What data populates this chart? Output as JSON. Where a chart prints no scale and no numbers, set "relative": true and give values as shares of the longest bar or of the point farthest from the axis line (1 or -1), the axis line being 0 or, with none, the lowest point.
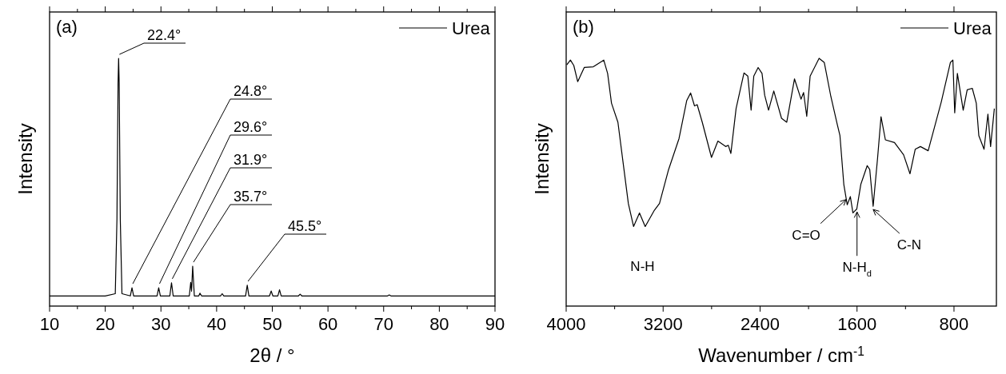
{
  "chart_data": [
    {
      "type": "line",
      "title": "(a)",
      "xlabel": "2θ / °",
      "ylabel": "Intensity",
      "relative": true,
      "tick_labels": "x",
      "legend": "top right",
      "xlim": [
        10,
        90
      ],
      "xticks": [
        10,
        {
          "value": 15,
          "label": null
        },
        20,
        {
          "value": 25,
          "label": null
        },
        30,
        {
          "value": 35,
          "label": null
        },
        40,
        {
          "value": 45,
          "label": null
        },
        50,
        {
          "value": 55,
          "label": null
        },
        60,
        {
          "value": 65,
          "label": null
        },
        70,
        {
          "value": 75,
          "label": null
        },
        80,
        {
          "value": 85,
          "label": null
        },
        90
      ],
      "annotations": [
        {
          "text": "22.4°",
          "x": 22.4,
          "y": 1.0
        },
        {
          "text": "24.8°",
          "x": 24.8,
          "y": 0.074
        },
        {
          "text": "29.6°",
          "x": 29.6,
          "y": 0.074
        },
        {
          "text": "31.9°",
          "x": 31.9,
          "y": 0.094
        },
        {
          "text": "35.7°",
          "x": 35.7,
          "y": 0.161
        },
        {
          "text": "45.5°",
          "x": 45.5,
          "y": 0.084
        }
      ],
      "series": [
        {
          "name": "Urea",
          "color": "#000000",
          "x": [
            10,
            20,
            21.8,
            22.1,
            22.3,
            22.4,
            22.5,
            22.7,
            23.0,
            24.5,
            24.8,
            25.1,
            29.3,
            29.6,
            29.9,
            31.6,
            31.9,
            32.2,
            35.1,
            35.35,
            35.5,
            35.7,
            36.0,
            36.8,
            37.0,
            37.3,
            40.7,
            41.0,
            41.3,
            45.2,
            45.5,
            45.8,
            49.5,
            49.8,
            50.1,
            51.0,
            51.3,
            51.6,
            54.7,
            55.0,
            55.3,
            70.7,
            71.0,
            71.3,
            90
          ],
          "values": [
            0.041,
            0.041,
            0.05,
            0.35,
            0.9,
            1.0,
            0.9,
            0.35,
            0.05,
            0.041,
            0.074,
            0.041,
            0.041,
            0.074,
            0.041,
            0.041,
            0.094,
            0.041,
            0.041,
            0.096,
            0.06,
            0.161,
            0.041,
            0.041,
            0.052,
            0.041,
            0.041,
            0.05,
            0.041,
            0.041,
            0.084,
            0.041,
            0.041,
            0.061,
            0.041,
            0.041,
            0.066,
            0.041,
            0.041,
            0.048,
            0.041,
            0.041,
            0.045,
            0.041,
            0.041
          ]
        }
      ]
    },
    {
      "type": "line",
      "title": "(b)",
      "xlabel": "Wavenumber / cm$^{-1}$",
      "ylabel": "Intensity",
      "relative": true,
      "tick_labels": "x",
      "legend": "top right",
      "xlim": [
        4000,
        450
      ],
      "xticks": [
        4000,
        {
          "value": 3600,
          "label": null
        },
        3200,
        {
          "value": 2800,
          "label": null
        },
        2400,
        {
          "value": 2000,
          "label": null
        },
        1600,
        {
          "value": 1200,
          "label": null
        },
        800
      ],
      "annotations": [
        {
          "text": "N-H",
          "x": 3370,
          "y": 0.32
        },
        {
          "text": "C=O",
          "x": 1690,
          "y": 0.43
        },
        {
          "text": "N-H$_{d}$",
          "x": 1600,
          "y": 0.38
        },
        {
          "text": "C-N",
          "x": 1467,
          "y": 0.39
        }
      ],
      "series": [
        {
          "name": "Urea",
          "color": "#000000",
          "x": [
            3995,
            3965,
            3937,
            3905,
            3851,
            3776,
            3690,
            3658,
            3626,
            3573,
            3530,
            3487,
            3444,
            3395,
            3348,
            3272,
            3230,
            3155,
            3069,
            3005,
            2973,
            2941,
            2919,
            2877,
            2801,
            2748,
            2684,
            2662,
            2641,
            2598,
            2533,
            2501,
            2474,
            2452,
            2416,
            2384,
            2362,
            2330,
            2287,
            2223,
            2180,
            2116,
            2062,
            2041,
            2015,
            1987,
            1913,
            1870,
            1816,
            1762,
            1741,
            1709,
            1681,
            1655,
            1634,
            1602,
            1569,
            1516,
            1495,
            1467,
            1430,
            1402,
            1366,
            1291,
            1216,
            1163,
            1120,
            1077,
            1013,
            905,
            830,
            809,
            794,
            772,
            724,
            691,
            649,
            616,
            595,
            552,
            520,
            498,
            467
          ],
          "values": [
            0.974,
            0.993,
            0.971,
            0.906,
            0.963,
            0.966,
            0.993,
            0.939,
            0.819,
            0.742,
            0.578,
            0.414,
            0.321,
            0.376,
            0.321,
            0.387,
            0.414,
            0.551,
            0.676,
            0.83,
            0.86,
            0.808,
            0.813,
            0.742,
            0.6,
            0.666,
            0.644,
            0.649,
            0.616,
            0.797,
            0.941,
            0.928,
            0.791,
            0.928,
            0.963,
            0.939,
            0.851,
            0.791,
            0.868,
            0.758,
            0.742,
            0.917,
            0.835,
            0.862,
            0.766,
            0.928,
            1.0,
            0.983,
            0.846,
            0.731,
            0.688,
            0.491,
            0.409,
            0.442,
            0.376,
            0.392,
            0.491,
            0.567,
            0.551,
            0.403,
            0.6,
            0.764,
            0.671,
            0.66,
            0.611,
            0.534,
            0.633,
            0.644,
            0.627,
            0.824,
            0.983,
            0.993,
            0.78,
            0.939,
            0.791,
            0.873,
            0.879,
            0.819,
            0.688,
            0.633,
            0.775,
            0.644,
            0.797
          ]
        }
      ]
    }
  ]
}
